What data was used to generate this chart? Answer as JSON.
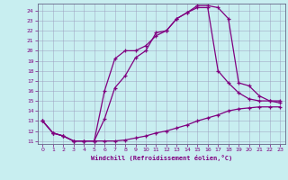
{
  "xlabel": "Windchill (Refroidissement éolien,°C)",
  "bg_color": "#c8eef0",
  "line_color": "#800080",
  "xlim": [
    -0.5,
    23.5
  ],
  "ylim": [
    10.7,
    24.7
  ],
  "yticks": [
    11,
    12,
    13,
    14,
    15,
    16,
    17,
    18,
    19,
    20,
    21,
    22,
    23,
    24
  ],
  "xticks": [
    0,
    1,
    2,
    3,
    4,
    5,
    6,
    7,
    8,
    9,
    10,
    11,
    12,
    13,
    14,
    15,
    16,
    17,
    18,
    19,
    20,
    21,
    22,
    23
  ],
  "line1_x": [
    0,
    1,
    2,
    3,
    4,
    5,
    6,
    7,
    8,
    9,
    10,
    11,
    12,
    13,
    14,
    15,
    16,
    17,
    18,
    19,
    20,
    21,
    22,
    23
  ],
  "line1_y": [
    13.0,
    11.8,
    11.5,
    11.0,
    11.0,
    11.0,
    11.0,
    11.0,
    11.1,
    11.3,
    11.5,
    11.8,
    12.0,
    12.3,
    12.6,
    13.0,
    13.3,
    13.6,
    14.0,
    14.2,
    14.3,
    14.4,
    14.4,
    14.4
  ],
  "line2_x": [
    0,
    1,
    2,
    3,
    4,
    5,
    6,
    7,
    8,
    9,
    10,
    11,
    12,
    13,
    14,
    15,
    16,
    17,
    18,
    19,
    20,
    21,
    22,
    23
  ],
  "line2_y": [
    13.0,
    11.8,
    11.5,
    11.0,
    11.0,
    11.0,
    13.2,
    16.3,
    17.5,
    19.3,
    20.0,
    21.8,
    22.0,
    23.2,
    23.8,
    24.3,
    24.3,
    18.0,
    16.8,
    15.8,
    15.2,
    15.0,
    15.0,
    15.0
  ],
  "line3_x": [
    0,
    1,
    2,
    3,
    4,
    5,
    6,
    7,
    8,
    9,
    10,
    11,
    12,
    13,
    14,
    15,
    16,
    17,
    18,
    19,
    20,
    21,
    22,
    23
  ],
  "line3_y": [
    13.0,
    11.8,
    11.5,
    11.0,
    11.0,
    11.0,
    16.0,
    19.2,
    20.0,
    20.0,
    20.5,
    21.5,
    22.0,
    23.2,
    23.8,
    24.5,
    24.5,
    24.3,
    23.2,
    16.8,
    16.5,
    15.5,
    15.0,
    14.8
  ]
}
